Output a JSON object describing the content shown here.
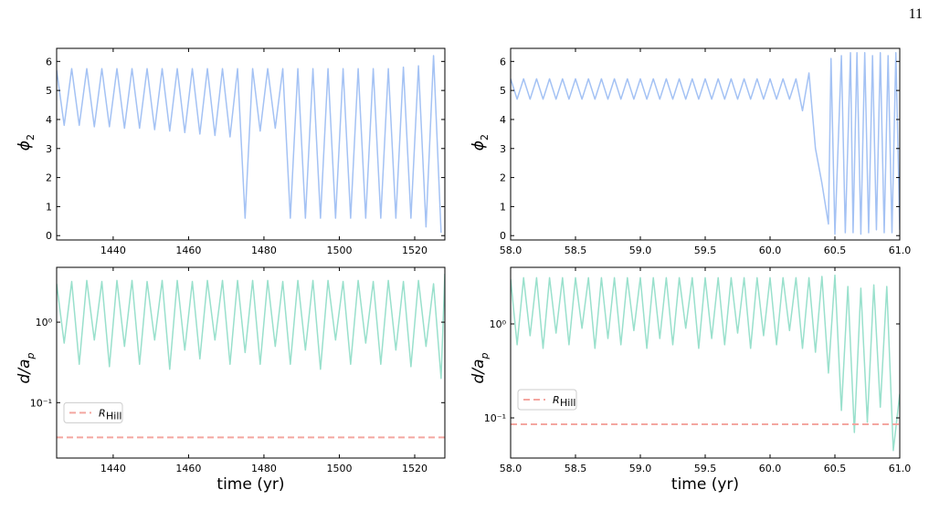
{
  "page_number": "11",
  "chart_data": [
    {
      "type": "line",
      "ylabel": "ϕ",
      "ylabel_sub": "2",
      "xlim": [
        1425,
        1528
      ],
      "xticks": [
        1440,
        1460,
        1480,
        1500,
        1520
      ],
      "ylim": [
        -0.15,
        6.45
      ],
      "yticks": [
        0,
        1,
        2,
        3,
        4,
        5,
        6
      ],
      "series": [
        {
          "color": "#a4c2f4",
          "x": [
            1425,
            1427,
            1429,
            1431,
            1433,
            1435,
            1437,
            1439,
            1441,
            1443,
            1445,
            1447,
            1449,
            1451,
            1453,
            1455,
            1457,
            1459,
            1461,
            1463,
            1465,
            1467,
            1469,
            1471,
            1473,
            1475,
            1477,
            1479,
            1481,
            1483,
            1485,
            1487,
            1489,
            1491,
            1493,
            1495,
            1497,
            1499,
            1501,
            1503,
            1505,
            1507,
            1509,
            1511,
            1513,
            1515,
            1517,
            1519,
            1521,
            1523,
            1525,
            1527
          ],
          "values": [
            5.7,
            3.8,
            5.75,
            3.8,
            5.75,
            3.75,
            5.75,
            3.75,
            5.75,
            3.7,
            5.75,
            3.7,
            5.75,
            3.65,
            5.75,
            3.6,
            5.75,
            3.55,
            5.75,
            3.5,
            5.75,
            3.45,
            5.75,
            3.4,
            5.75,
            0.6,
            5.75,
            3.6,
            5.75,
            3.7,
            5.75,
            0.6,
            5.75,
            0.6,
            5.75,
            0.6,
            5.75,
            0.6,
            5.75,
            0.6,
            5.75,
            0.6,
            5.75,
            0.6,
            5.75,
            0.6,
            5.8,
            0.6,
            5.85,
            0.3,
            6.2,
            0.1
          ]
        }
      ]
    },
    {
      "type": "line",
      "ylabel": "ϕ",
      "ylabel_sub": "2",
      "xlim": [
        58,
        61
      ],
      "xticks": [
        {
          "value": 58,
          "label": "58.0"
        },
        {
          "value": 58.5,
          "label": "58.5"
        },
        {
          "value": 59,
          "label": "59.0"
        },
        {
          "value": 59.5,
          "label": "59.5"
        },
        {
          "value": 60,
          "label": "60.0"
        },
        {
          "value": 60.5,
          "label": "60.5"
        },
        {
          "value": 61,
          "label": "61.0"
        }
      ],
      "ylim": [
        -0.15,
        6.45
      ],
      "yticks": [
        0,
        1,
        2,
        3,
        4,
        5,
        6
      ],
      "series": [
        {
          "color": "#a4c2f4",
          "x": [
            58,
            58.05,
            58.1,
            58.15,
            58.2,
            58.25,
            58.3,
            58.35,
            58.4,
            58.45,
            58.5,
            58.55,
            58.6,
            58.65,
            58.7,
            58.75,
            58.8,
            58.85,
            58.9,
            58.95,
            59,
            59.05,
            59.1,
            59.15,
            59.2,
            59.25,
            59.3,
            59.35,
            59.4,
            59.45,
            59.5,
            59.55,
            59.6,
            59.65,
            59.7,
            59.75,
            59.8,
            59.85,
            59.9,
            59.95,
            60,
            60.05,
            60.1,
            60.15,
            60.2,
            60.25,
            60.3,
            60.35,
            60.4,
            60.45,
            60.47,
            60.5,
            60.55,
            60.58,
            60.62,
            60.64,
            60.67,
            60.7,
            60.73,
            60.76,
            60.79,
            60.82,
            60.85,
            60.88,
            60.91,
            60.94,
            60.97,
            61
          ],
          "values": [
            5.4,
            4.7,
            5.4,
            4.7,
            5.4,
            4.7,
            5.4,
            4.7,
            5.4,
            4.7,
            5.4,
            4.7,
            5.4,
            4.7,
            5.4,
            4.7,
            5.4,
            4.7,
            5.4,
            4.7,
            5.4,
            4.7,
            5.4,
            4.7,
            5.4,
            4.7,
            5.4,
            4.7,
            5.4,
            4.7,
            5.4,
            4.7,
            5.4,
            4.7,
            5.4,
            4.7,
            5.4,
            4.7,
            5.4,
            4.7,
            5.4,
            4.7,
            5.4,
            4.7,
            5.4,
            4.3,
            5.6,
            3.0,
            1.8,
            0.4,
            6.1,
            0.05,
            6.2,
            0.1,
            6.3,
            0.1,
            6.3,
            0.05,
            6.3,
            0.1,
            6.2,
            0.2,
            6.3,
            0.1,
            6.2,
            0.1,
            6.3,
            0.2
          ]
        }
      ]
    },
    {
      "type": "line",
      "ylabel": "d/a",
      "ylabel_sub": "p",
      "xlabel": "time (yr)",
      "yscale": "log",
      "xlim": [
        1425,
        1528
      ],
      "xticks": [
        1440,
        1460,
        1480,
        1500,
        1520
      ],
      "ylim": [
        0.0205,
        4.8
      ],
      "yticks": [
        {
          "value": 1,
          "label": "10⁰"
        },
        {
          "value": 0.1,
          "label": "10⁻¹"
        }
      ],
      "series": [
        {
          "color": "#99e0cc",
          "x": [
            1425,
            1427,
            1429,
            1431,
            1433,
            1435,
            1437,
            1439,
            1441,
            1443,
            1445,
            1447,
            1449,
            1451,
            1453,
            1455,
            1457,
            1459,
            1461,
            1463,
            1465,
            1467,
            1469,
            1471,
            1473,
            1475,
            1477,
            1479,
            1481,
            1483,
            1485,
            1487,
            1489,
            1491,
            1493,
            1495,
            1497,
            1499,
            1501,
            1503,
            1505,
            1507,
            1509,
            1511,
            1513,
            1515,
            1517,
            1519,
            1521,
            1523,
            1525,
            1527,
            1528
          ],
          "values": [
            3.0,
            0.55,
            3.2,
            0.3,
            3.3,
            0.6,
            3.2,
            0.28,
            3.3,
            0.5,
            3.3,
            0.3,
            3.2,
            0.6,
            3.3,
            0.26,
            3.3,
            0.45,
            3.2,
            0.35,
            3.3,
            0.6,
            3.3,
            0.3,
            3.3,
            0.42,
            3.3,
            0.3,
            3.3,
            0.5,
            3.2,
            0.3,
            3.3,
            0.45,
            3.3,
            0.26,
            3.3,
            0.6,
            3.2,
            0.3,
            3.3,
            0.55,
            3.2,
            0.3,
            3.3,
            0.45,
            3.2,
            0.28,
            3.3,
            0.5,
            3.0,
            0.2,
            4.0
          ]
        }
      ],
      "hline": {
        "name": "R",
        "name_sub": "Hill",
        "value": 0.037,
        "color": "#f4a6a0"
      }
    },
    {
      "type": "line",
      "ylabel": "d/a",
      "ylabel_sub": "p",
      "xlabel": "time (yr)",
      "yscale": "log",
      "xlim": [
        58,
        61
      ],
      "xticks": [
        {
          "value": 58,
          "label": "58.0"
        },
        {
          "value": 58.5,
          "label": "58.5"
        },
        {
          "value": 59,
          "label": "59.0"
        },
        {
          "value": 59.5,
          "label": "59.5"
        },
        {
          "value": 60,
          "label": "60.0"
        },
        {
          "value": 60.5,
          "label": "60.5"
        },
        {
          "value": 61,
          "label": "61.0"
        }
      ],
      "ylim": [
        0.0374,
        4.0
      ],
      "yticks": [
        {
          "value": 1,
          "label": "10⁰"
        },
        {
          "value": 0.1,
          "label": "10⁻¹"
        }
      ],
      "series": [
        {
          "color": "#99e0cc",
          "x": [
            58,
            58.05,
            58.1,
            58.15,
            58.2,
            58.25,
            58.3,
            58.35,
            58.4,
            58.45,
            58.5,
            58.55,
            58.6,
            58.65,
            58.7,
            58.75,
            58.8,
            58.85,
            58.9,
            58.95,
            59,
            59.05,
            59.1,
            59.15,
            59.2,
            59.25,
            59.3,
            59.35,
            59.4,
            59.45,
            59.5,
            59.55,
            59.6,
            59.65,
            59.7,
            59.75,
            59.8,
            59.85,
            59.9,
            59.95,
            60,
            60.05,
            60.1,
            60.15,
            60.2,
            60.25,
            60.3,
            60.35,
            60.4,
            60.45,
            60.5,
            60.55,
            60.6,
            60.65,
            60.7,
            60.75,
            60.8,
            60.85,
            60.9,
            60.95,
            61
          ],
          "values": [
            3.0,
            0.6,
            3.1,
            0.75,
            3.1,
            0.55,
            3.1,
            0.8,
            3.1,
            0.6,
            3.1,
            0.9,
            3.1,
            0.55,
            3.1,
            0.7,
            3.1,
            0.6,
            3.1,
            0.85,
            3.1,
            0.55,
            3.1,
            0.7,
            3.1,
            0.6,
            3.1,
            0.9,
            3.1,
            0.55,
            3.1,
            0.7,
            3.1,
            0.6,
            3.1,
            0.8,
            3.1,
            0.55,
            3.1,
            0.75,
            3.1,
            0.6,
            3.1,
            0.85,
            3.1,
            0.55,
            3.1,
            0.5,
            3.2,
            0.3,
            3.3,
            0.12,
            2.5,
            0.07,
            2.4,
            0.09,
            2.6,
            0.13,
            2.5,
            0.045,
            0.18
          ]
        }
      ],
      "hline": {
        "name": "R",
        "name_sub": "Hill",
        "value": 0.0855,
        "color": "#f4a6a0"
      }
    }
  ]
}
